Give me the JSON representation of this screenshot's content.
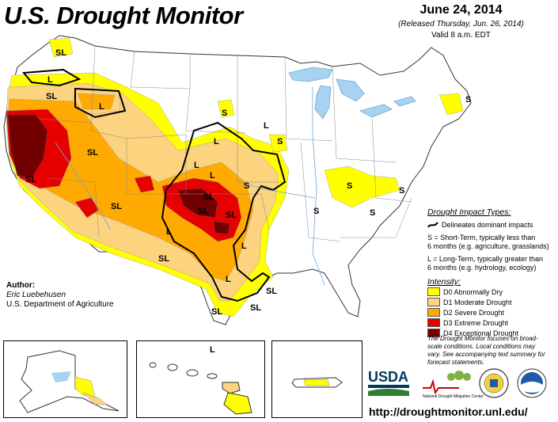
{
  "header": {
    "title": "U.S. Drought Monitor",
    "date": "June 24, 2014",
    "released": "(Released Thursday, Jun. 26, 2014)",
    "valid": "Valid 8 a.m. EDT"
  },
  "colors": {
    "d0": "#ffff00",
    "d1": "#fcd37f",
    "d2": "#ffaa00",
    "d3": "#e60000",
    "d4": "#730000",
    "water": "#a6d3f2",
    "land": "#ffffff"
  },
  "legend": {
    "impact_title": "Drought Impact Types:",
    "dominant": "Delineates dominant impacts",
    "s_def_line1": "S = Short-Term, typically less than",
    "s_def_line2": "6 months (e.g. agriculture, grasslands)",
    "l_def_line1": "L = Long-Term, typically greater than",
    "l_def_line2": "6 months (e.g. hydrology, ecology)",
    "intensity_title": "Intensity:",
    "items": [
      {
        "code": "D0",
        "label": "D0 Abnormally Dry",
        "color": "#ffff00"
      },
      {
        "code": "D1",
        "label": "D1 Moderate Drought",
        "color": "#fcd37f"
      },
      {
        "code": "D2",
        "label": "D2 Severe Drought",
        "color": "#ffaa00"
      },
      {
        "code": "D3",
        "label": "D3 Extreme Drought",
        "color": "#e60000"
      },
      {
        "code": "D4",
        "label": "D4 Exceptional Drought",
        "color": "#730000"
      }
    ]
  },
  "author": {
    "heading": "Author:",
    "name": "Eric Luebehusen",
    "org": "U.S. Department of Agriculture"
  },
  "note": {
    "line1": "The Drought Monitor focuses on broad-",
    "line2": "scale conditions. Local conditions may",
    "line3": "vary. See accompanying text summary for",
    "line4": "forecast statements."
  },
  "labels": {
    "sl": "SL",
    "s": "S",
    "l": "L"
  },
  "logos": {
    "usda": "USDA",
    "ndmc": "National Drought Mitigation Center"
  },
  "url": "http://droughtmonitor.unl.edu/"
}
